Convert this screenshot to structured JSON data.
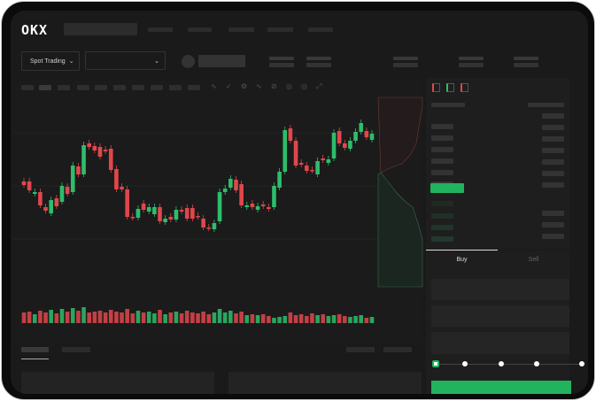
{
  "header": {
    "logo": "OKX"
  },
  "toolbar": {
    "market_selector": "Spot Trading",
    "market_selector_icon": "chevron-down-icon",
    "pair_dropdown_icon": "chevron-down-icon"
  },
  "order_form": {
    "tabs": [
      {
        "label": "Buy",
        "active": true
      },
      {
        "label": "Sell",
        "active": false
      }
    ],
    "slider_value_percent": 0,
    "slider_steps": [
      0,
      25,
      50,
      75,
      100
    ]
  },
  "colors": {
    "up": "#2ebd6b",
    "down": "#e0474c",
    "accent": "#22b35e",
    "background": "#1a1a1a"
  },
  "chart_data": {
    "type": "candlestick",
    "candles": [
      [
        97,
        93
      ],
      [
        97,
        87
      ],
      [
        83,
        85
      ],
      [
        85,
        70
      ],
      [
        68,
        64
      ],
      [
        61,
        76
      ],
      [
        78,
        69
      ],
      [
        74,
        92
      ],
      [
        91,
        83
      ],
      [
        85,
        115
      ],
      [
        114,
        105
      ],
      [
        105,
        138
      ],
      [
        140,
        136
      ],
      [
        137,
        132
      ],
      [
        136,
        125
      ],
      [
        133,
        131
      ],
      [
        134,
        110
      ],
      [
        111,
        88
      ],
      [
        91,
        88
      ],
      [
        88,
        57
      ],
      [
        57,
        56
      ],
      [
        56,
        66
      ],
      [
        72,
        65
      ],
      [
        63,
        68
      ],
      [
        60,
        68
      ],
      [
        68,
        52
      ],
      [
        51,
        55
      ],
      [
        57,
        54
      ],
      [
        54,
        65
      ],
      [
        65,
        63
      ],
      [
        67,
        55
      ],
      [
        67,
        55
      ],
      [
        58,
        57
      ],
      [
        55,
        45
      ],
      [
        45,
        44
      ],
      [
        43,
        50
      ],
      [
        52,
        85
      ],
      [
        85,
        89
      ],
      [
        90,
        100
      ],
      [
        99,
        87
      ],
      [
        94,
        70
      ],
      [
        68,
        70
      ],
      [
        72,
        68
      ],
      [
        65,
        69
      ],
      [
        71,
        69
      ],
      [
        68,
        66
      ],
      [
        68,
        92
      ],
      [
        90,
        108
      ],
      [
        108,
        155
      ],
      [
        157,
        143
      ],
      [
        143,
        115
      ],
      [
        118,
        116
      ],
      [
        115,
        109
      ],
      [
        110,
        109
      ],
      [
        105,
        120
      ],
      [
        123,
        121
      ],
      [
        118,
        122
      ],
      [
        123,
        152
      ],
      [
        154,
        140
      ],
      [
        140,
        135
      ],
      [
        134,
        143
      ],
      [
        143,
        153
      ],
      [
        153,
        163
      ],
      [
        154,
        147
      ],
      [
        144,
        151
      ]
    ],
    "volume": [
      12,
      13,
      10,
      14,
      12,
      15,
      11,
      16,
      13,
      17,
      14,
      18,
      12,
      13,
      14,
      12,
      15,
      13,
      12,
      16,
      11,
      14,
      12,
      13,
      11,
      15,
      10,
      12,
      13,
      11,
      14,
      12,
      11,
      13,
      10,
      12,
      16,
      12,
      14,
      11,
      13,
      9,
      10,
      9,
      10,
      8,
      6,
      7,
      8,
      12,
      9,
      10,
      8,
      11,
      9,
      10,
      8,
      9,
      10,
      8,
      7,
      8,
      9,
      6,
      7
    ]
  }
}
